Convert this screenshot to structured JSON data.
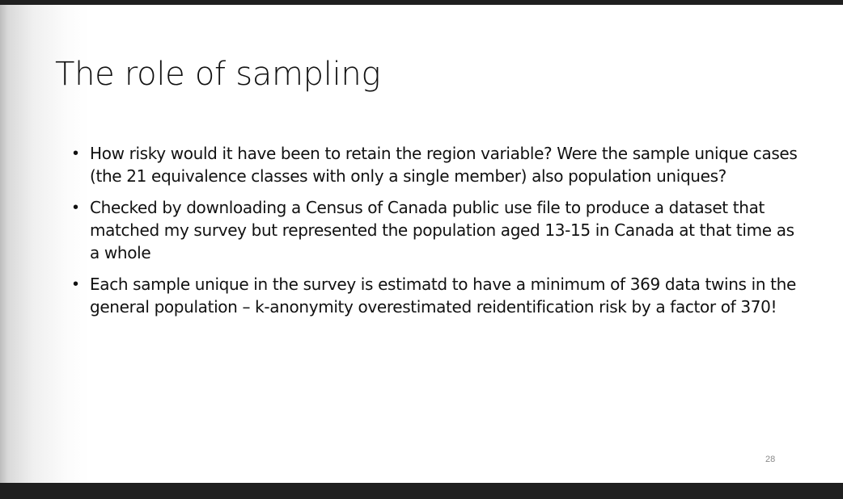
{
  "slide": {
    "title": "The role of sampling",
    "bullets": [
      {
        "text": "How risky would it have been to retain the region variable? Were the sample unique cases (the 21 equivalence classes with only a single member) also population uniques?"
      },
      {
        "text": "Checked by downloading a Census of Canada public use file to produce a dataset that matched my survey but represented the population aged 13-15 in Canada at that time as a whole"
      },
      {
        "text": "Each sample unique in the survey is estimatd to have a minimum of 369 data twins in the general population – k-anonymity overestimated reidentification risk by a factor of 370!"
      }
    ],
    "page_number": "28"
  },
  "colors": {
    "text": "#111111",
    "frame": "#1f1f1f",
    "page_number": "#8a8a8a"
  }
}
